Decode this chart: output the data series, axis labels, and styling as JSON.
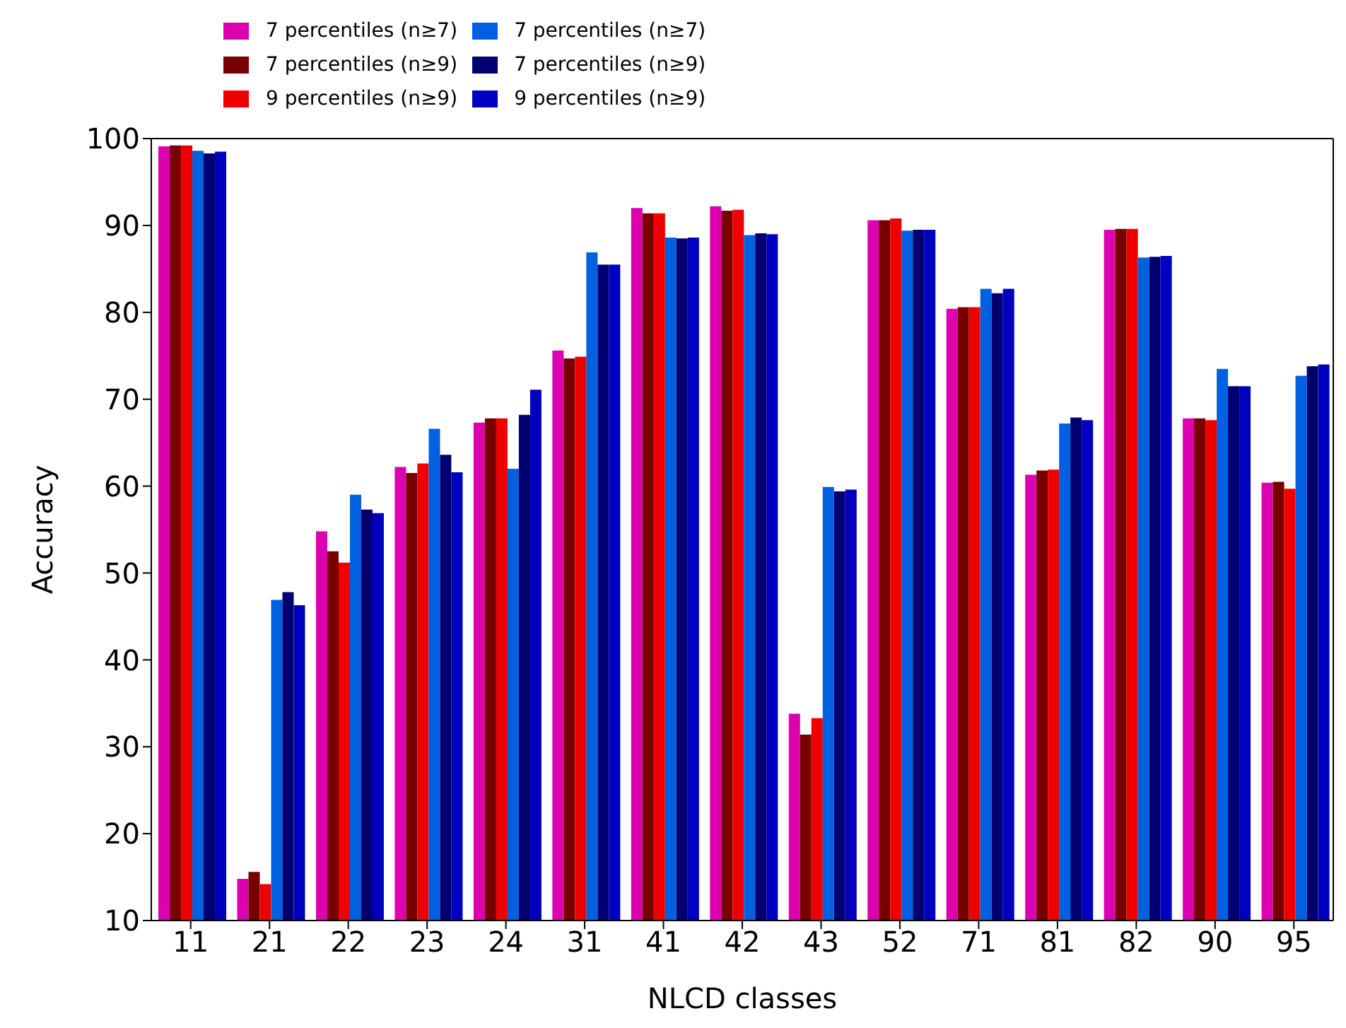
{
  "chart_data": {
    "type": "bar",
    "xlabel": "NLCD classes",
    "ylabel": "Accuracy",
    "categories": [
      "11",
      "21",
      "22",
      "23",
      "24",
      "31",
      "41",
      "42",
      "43",
      "52",
      "71",
      "81",
      "82",
      "90",
      "95"
    ],
    "series": [
      {
        "name": "7 percentiles (n≥7)",
        "color": "#dd00b0",
        "values": [
          99.1,
          14.8,
          54.8,
          62.2,
          67.3,
          75.6,
          92.0,
          92.2,
          33.8,
          90.6,
          80.4,
          61.3,
          89.5,
          67.8,
          60.4
        ]
      },
      {
        "name": "7 percentiles (n≥9)",
        "color": "#780000",
        "values": [
          99.2,
          15.6,
          52.5,
          61.5,
          67.8,
          74.7,
          91.4,
          91.7,
          31.4,
          90.6,
          80.6,
          61.8,
          89.6,
          67.8,
          60.5
        ]
      },
      {
        "name": "9 percentiles (n≥9)",
        "color": "#ee0000",
        "values": [
          99.2,
          14.2,
          51.2,
          62.6,
          67.8,
          74.9,
          91.4,
          91.8,
          33.3,
          90.8,
          80.6,
          61.9,
          89.6,
          67.6,
          59.7
        ]
      },
      {
        "name": "7 percentiles (n≥7)",
        "color": "#0060e0",
        "values": [
          98.6,
          46.9,
          59.0,
          66.6,
          62.0,
          86.9,
          88.6,
          88.9,
          59.9,
          89.4,
          82.7,
          67.2,
          86.3,
          73.5,
          72.7
        ]
      },
      {
        "name": "7 percentiles (n≥9)",
        "color": "#000070",
        "values": [
          98.3,
          47.8,
          57.3,
          63.6,
          68.2,
          85.5,
          88.5,
          89.1,
          59.4,
          89.5,
          82.2,
          67.9,
          86.4,
          71.5,
          73.8
        ]
      },
      {
        "name": "9 percentiles (n≥9)",
        "color": "#0000c0",
        "values": [
          98.5,
          46.3,
          56.9,
          61.6,
          71.1,
          85.5,
          88.6,
          89.0,
          59.6,
          89.5,
          82.7,
          67.6,
          86.5,
          71.5,
          74.0
        ]
      }
    ],
    "ylim": [
      10,
      100
    ],
    "yticks": [
      10,
      20,
      30,
      40,
      50,
      60,
      70,
      80,
      90,
      100
    ],
    "grid": false,
    "legend": "top left"
  }
}
